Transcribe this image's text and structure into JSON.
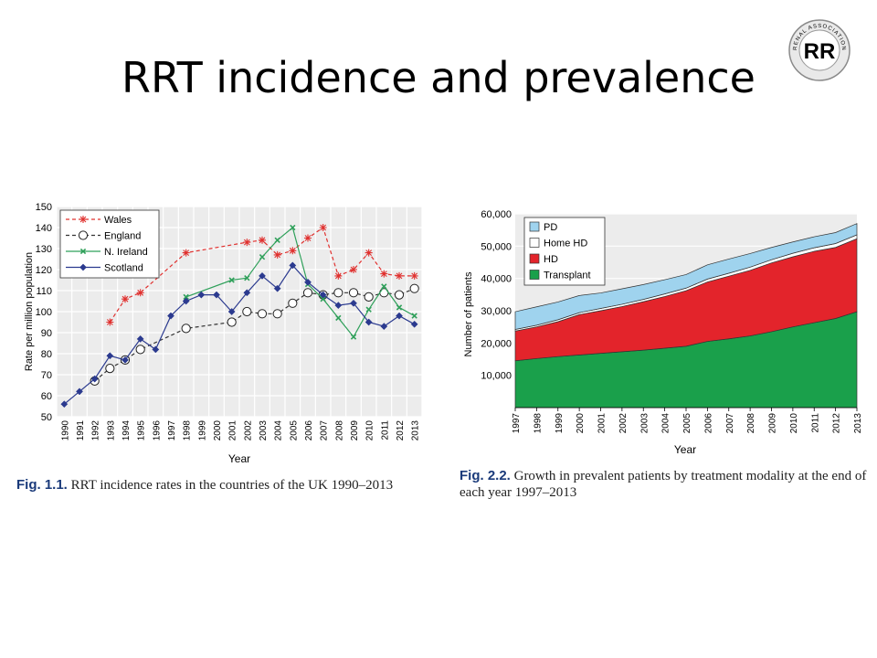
{
  "slide": {
    "title": "RRT incidence and prevalence"
  },
  "logo": {
    "letters": "RR",
    "ring_text": "RENAL ASSOCIATION"
  },
  "colors": {
    "wales": "#e0312f",
    "england": "#333333",
    "nireland": "#2fa05a",
    "scotland": "#2b3a8f",
    "pd": "#9fd3ee",
    "homehd": "#ffffff",
    "hd": "#e3242b",
    "transplant": "#1aa04b"
  },
  "chart_data": [
    {
      "type": "line",
      "xlabel": "Year",
      "ylabel": "Rate per million population",
      "ylim": [
        50,
        150
      ],
      "yticks": [
        50,
        60,
        70,
        80,
        90,
        100,
        110,
        120,
        130,
        140,
        150
      ],
      "categories": [
        "1990",
        "1991",
        "1992",
        "1993",
        "1994",
        "1995",
        "1996",
        "1997",
        "1998",
        "1999",
        "2000",
        "2001",
        "2002",
        "2003",
        "2004",
        "2005",
        "2006",
        "2007",
        "2008",
        "2009",
        "2010",
        "2011",
        "2012",
        "2013"
      ],
      "grid": true,
      "legend_position": "top-left",
      "series": [
        {
          "name": "Wales",
          "marker": "star",
          "style": "dashed",
          "values": [
            null,
            null,
            null,
            95,
            106,
            109,
            null,
            null,
            128,
            null,
            null,
            null,
            133,
            134,
            127,
            129,
            135,
            140,
            117,
            120,
            128,
            118,
            117,
            117
          ]
        },
        {
          "name": "England",
          "marker": "open-circle",
          "style": "dashed",
          "values": [
            null,
            null,
            67,
            73,
            77,
            82,
            null,
            null,
            92,
            null,
            null,
            95,
            100,
            99,
            99,
            104,
            109,
            108,
            109,
            109,
            107,
            109,
            108,
            111
          ]
        },
        {
          "name": "N. Ireland",
          "marker": "x",
          "style": "solid",
          "values": [
            null,
            null,
            null,
            null,
            null,
            null,
            null,
            null,
            107,
            null,
            null,
            115,
            116,
            126,
            134,
            140,
            113,
            106,
            97,
            88,
            101,
            112,
            102,
            98
          ]
        },
        {
          "name": "Scotland",
          "marker": "diamond",
          "style": "solid",
          "values": [
            56,
            62,
            68,
            79,
            77,
            87,
            82,
            98,
            105,
            108,
            108,
            100,
            109,
            117,
            111,
            122,
            114,
            108,
            103,
            104,
            95,
            93,
            98,
            94
          ]
        }
      ],
      "caption_label": "Fig. 1.1.",
      "caption_text": "RRT incidence rates in the countries of the UK 1990–2013"
    },
    {
      "type": "area",
      "stacked": true,
      "xlabel": "Year",
      "ylabel": "Number of patients",
      "ylim": [
        0,
        60000
      ],
      "yticks": [
        10000,
        20000,
        30000,
        40000,
        50000,
        60000
      ],
      "ytick_labels": [
        "10,000",
        "20,000",
        "30,000",
        "40,000",
        "50,000",
        "60,000"
      ],
      "categories": [
        "1997",
        "1998",
        "1999",
        "2000",
        "2001",
        "2002",
        "2003",
        "2004",
        "2005",
        "2006",
        "2007",
        "2008",
        "2009",
        "2010",
        "2011",
        "2012",
        "2013"
      ],
      "legend_position": "top-left",
      "series": [
        {
          "name": "Transplant",
          "values": [
            14500,
            15200,
            15800,
            16300,
            16800,
            17300,
            17800,
            18400,
            19000,
            20500,
            21300,
            22200,
            23500,
            25000,
            26300,
            27600,
            29700
          ]
        },
        {
          "name": "HD",
          "values": [
            9200,
            9800,
            10800,
            12500,
            13200,
            14000,
            15000,
            16000,
            17200,
            18400,
            19400,
            20300,
            21300,
            21700,
            22100,
            22000,
            22600
          ]
        },
        {
          "name": "Home HD",
          "values": [
            500,
            500,
            600,
            600,
            700,
            700,
            700,
            800,
            800,
            900,
            900,
            1000,
            1000,
            1100,
            1100,
            1200,
            1200
          ]
        },
        {
          "name": "PD",
          "values": [
            5500,
            5700,
            5500,
            5300,
            4800,
            4800,
            4600,
            4400,
            4200,
            4400,
            4400,
            4200,
            3800,
            3500,
            3400,
            3400,
            3500
          ]
        }
      ],
      "caption_label": "Fig. 2.2.",
      "caption_text": "Growth in prevalent patients by treatment modality at the end of each year 1997–2013"
    }
  ]
}
